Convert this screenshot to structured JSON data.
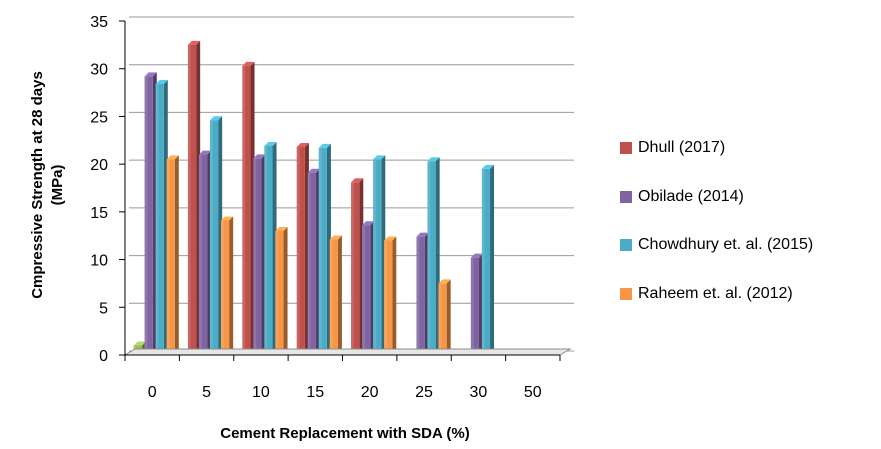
{
  "chart_data": {
    "type": "bar",
    "xlabel": "Cement Replacement with SDA (%)",
    "ylabel_lines": [
      "Cmpressive Strength at 28 days",
      "(MPa)"
    ],
    "categories": [
      "0",
      "5",
      "10",
      "15",
      "20",
      "25",
      "30",
      "50"
    ],
    "ylim": [
      0,
      35
    ],
    "yticks": [
      "0",
      "5",
      "10",
      "15",
      "20",
      "25",
      "30",
      "35"
    ],
    "grid": true,
    "legend_position": "right",
    "series": [
      {
        "name": "Dhull (2017)",
        "color": "#c0504d",
        "values": [
          1,
          32.5,
          30.3,
          21.8,
          18.1,
          null,
          null,
          null
        ]
      },
      {
        "name": "Obilade (2014)",
        "color": "#8064a2",
        "values": [
          29.2,
          21,
          20.6,
          19.1,
          13.6,
          12.4,
          10.2,
          null
        ]
      },
      {
        "name": "Chowdhury et. al. (2015)",
        "color": "#4bacc6",
        "values": [
          28.4,
          24.6,
          21.9,
          21.7,
          20.5,
          20.3,
          19.5,
          null
        ]
      },
      {
        "name": "Raheem et. al. (2012)",
        "color": "#f79646",
        "values": [
          20.5,
          14.1,
          13,
          12.1,
          12,
          7.5,
          null,
          null
        ]
      }
    ],
    "annotations": {
      "zero_percent_first_series_color": "#9bbb59"
    }
  }
}
